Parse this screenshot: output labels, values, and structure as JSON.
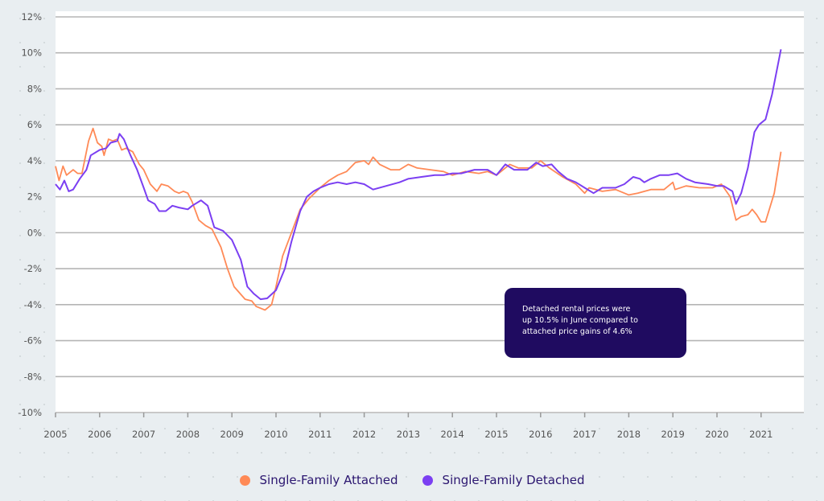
{
  "chart_data": {
    "type": "line",
    "title": "",
    "xlabel": "",
    "ylabel": "",
    "xlim": [
      2005,
      2022
    ],
    "ylim": [
      -10,
      12
    ],
    "grid": true,
    "y_ticks": [
      12,
      10,
      8,
      6,
      4,
      2,
      0,
      -2,
      -4,
      -6,
      -8,
      -10
    ],
    "y_tick_labels": [
      "12%",
      "10%",
      "8%",
      "6%",
      "4%",
      "2%",
      "0%",
      "-2%",
      "-4%",
      "-6%",
      "-8%",
      "-10%"
    ],
    "x_ticks": [
      2005,
      2006,
      2007,
      2008,
      2009,
      2010,
      2011,
      2012,
      2013,
      2014,
      2015,
      2016,
      2017,
      2018,
      2019,
      2020,
      2021
    ],
    "x_tick_labels": [
      "2005",
      "2006",
      "2007",
      "2008",
      "2009",
      "2010",
      "2011",
      "2012",
      "2013",
      "2014",
      "2015",
      "2016",
      "2017",
      "2018",
      "2019",
      "2020",
      "2021"
    ],
    "legend_position": "bottom-center",
    "annotation": "Detached rental prices were up 10.5% in June compared to attached price gains of 4.6%",
    "annotation_lines": [
      "Detached rental prices were",
      "up 10.5% in June compared to",
      "attached price gains of 4.6%"
    ],
    "series": [
      {
        "name": "Single-Family Attached",
        "color": "#ff8a57",
        "x": [
          2005.0,
          2005.08,
          2005.17,
          2005.25,
          2005.4,
          2005.5,
          2005.6,
          2005.75,
          2005.85,
          2005.95,
          2006.05,
          2006.1,
          2006.2,
          2006.3,
          2006.4,
          2006.5,
          2006.6,
          2006.75,
          2006.9,
          2007.0,
          2007.15,
          2007.3,
          2007.4,
          2007.55,
          2007.7,
          2007.8,
          2007.9,
          2008.0,
          2008.1,
          2008.25,
          2008.4,
          2008.55,
          2008.75,
          2008.9,
          2009.05,
          2009.3,
          2009.45,
          2009.55,
          2009.75,
          2009.9,
          2010.0,
          2010.15,
          2010.35,
          2010.55,
          2010.75,
          2011.0,
          2011.2,
          2011.4,
          2011.6,
          2011.8,
          2012.0,
          2012.1,
          2012.2,
          2012.35,
          2012.6,
          2012.8,
          2013.0,
          2013.2,
          2013.5,
          2013.8,
          2014.0,
          2014.3,
          2014.6,
          2014.8,
          2015.0,
          2015.3,
          2015.5,
          2015.8,
          2016.0,
          2016.2,
          2016.5,
          2016.8,
          2017.0,
          2017.1,
          2017.4,
          2017.7,
          2018.0,
          2018.2,
          2018.5,
          2018.8,
          2019.0,
          2019.05,
          2019.3,
          2019.6,
          2019.9,
          2020.1,
          2020.3,
          2020.43,
          2020.55,
          2020.7,
          2020.8,
          2020.9,
          2021.0,
          2021.1,
          2021.3,
          2021.45
        ],
        "y": [
          3.7,
          2.9,
          3.7,
          3.2,
          3.5,
          3.3,
          3.3,
          5.1,
          5.8,
          5.0,
          4.8,
          4.3,
          5.2,
          5.1,
          5.2,
          4.6,
          4.7,
          4.5,
          3.8,
          3.5,
          2.7,
          2.3,
          2.7,
          2.6,
          2.3,
          2.2,
          2.3,
          2.2,
          1.7,
          0.7,
          0.4,
          0.2,
          -0.8,
          -2.0,
          -3.0,
          -3.7,
          -3.8,
          -4.1,
          -4.3,
          -4.0,
          -3.0,
          -1.3,
          0.0,
          1.3,
          1.9,
          2.5,
          2.9,
          3.2,
          3.4,
          3.9,
          4.0,
          3.8,
          4.2,
          3.8,
          3.5,
          3.5,
          3.8,
          3.6,
          3.5,
          3.4,
          3.2,
          3.4,
          3.3,
          3.4,
          3.2,
          3.8,
          3.6,
          3.6,
          4.0,
          3.6,
          3.1,
          2.7,
          2.2,
          2.5,
          2.3,
          2.4,
          2.1,
          2.2,
          2.4,
          2.4,
          2.8,
          2.4,
          2.6,
          2.5,
          2.5,
          2.7,
          2.0,
          0.7,
          0.9,
          1.0,
          1.3,
          1.0,
          0.6,
          0.6,
          2.2,
          4.5
        ]
      },
      {
        "name": "Single-Family Detached",
        "color": "#7b3ff2",
        "x": [
          2005.0,
          2005.1,
          2005.2,
          2005.3,
          2005.4,
          2005.55,
          2005.7,
          2005.8,
          2006.0,
          2006.15,
          2006.25,
          2006.4,
          2006.45,
          2006.55,
          2006.7,
          2006.85,
          2007.0,
          2007.1,
          2007.25,
          2007.35,
          2007.5,
          2007.65,
          2007.8,
          2008.0,
          2008.1,
          2008.3,
          2008.45,
          2008.6,
          2008.8,
          2009.0,
          2009.2,
          2009.35,
          2009.5,
          2009.65,
          2009.8,
          2010.0,
          2010.2,
          2010.35,
          2010.55,
          2010.7,
          2010.85,
          2011.0,
          2011.2,
          2011.4,
          2011.6,
          2011.8,
          2012.0,
          2012.2,
          2012.5,
          2012.8,
          2013.0,
          2013.3,
          2013.6,
          2013.8,
          2014.0,
          2014.2,
          2014.5,
          2014.8,
          2015.0,
          2015.2,
          2015.4,
          2015.7,
          2015.9,
          2016.05,
          2016.25,
          2016.4,
          2016.6,
          2016.8,
          2017.0,
          2017.2,
          2017.4,
          2017.7,
          2017.9,
          2018.1,
          2018.25,
          2018.35,
          2018.5,
          2018.7,
          2018.9,
          2019.1,
          2019.3,
          2019.5,
          2019.8,
          2020.0,
          2020.15,
          2020.35,
          2020.43,
          2020.55,
          2020.7,
          2020.85,
          2020.95,
          2021.1,
          2021.25,
          2021.45
        ],
        "y": [
          2.7,
          2.4,
          2.9,
          2.3,
          2.4,
          3.0,
          3.5,
          4.3,
          4.6,
          4.7,
          5.0,
          5.1,
          5.5,
          5.2,
          4.3,
          3.5,
          2.5,
          1.8,
          1.6,
          1.2,
          1.2,
          1.5,
          1.4,
          1.3,
          1.5,
          1.8,
          1.5,
          0.3,
          0.1,
          -0.4,
          -1.5,
          -3.0,
          -3.4,
          -3.7,
          -3.65,
          -3.2,
          -2.0,
          -0.5,
          1.2,
          2.0,
          2.3,
          2.5,
          2.7,
          2.8,
          2.7,
          2.8,
          2.7,
          2.4,
          2.6,
          2.8,
          3.0,
          3.1,
          3.2,
          3.2,
          3.3,
          3.3,
          3.5,
          3.5,
          3.2,
          3.8,
          3.5,
          3.5,
          3.9,
          3.7,
          3.8,
          3.4,
          3.0,
          2.8,
          2.5,
          2.2,
          2.5,
          2.5,
          2.7,
          3.1,
          3.0,
          2.8,
          3.0,
          3.2,
          3.2,
          3.3,
          3.0,
          2.8,
          2.7,
          2.6,
          2.6,
          2.3,
          1.6,
          2.2,
          3.6,
          5.6,
          6.0,
          6.3,
          7.7,
          10.2
        ]
      }
    ]
  }
}
